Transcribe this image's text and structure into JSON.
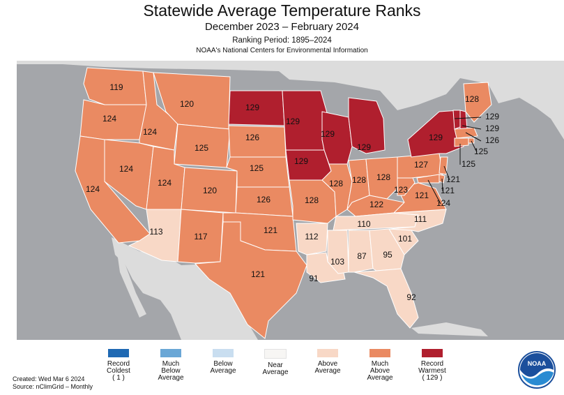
{
  "title": "Statewide Average Temperature Ranks",
  "period": "December 2023 – February 2024",
  "ranking_period": "Ranking Period: 1895–2024",
  "agency": "NOAA's National Centers for Environmental Information",
  "colors": {
    "record_coldest": "#1f69b3",
    "much_below": "#6aa7d6",
    "below": "#c9def0",
    "near": "#f7f6f4",
    "above": "#f8d8c6",
    "much_above": "#ea8a62",
    "record_warmest": "#b01f2e",
    "ocean": "#a4a6aa",
    "land": "#dcdcdc"
  },
  "states": [
    {
      "code": "WA",
      "rank": "119",
      "category": "much_above"
    },
    {
      "code": "OR",
      "rank": "124",
      "category": "much_above"
    },
    {
      "code": "CA",
      "rank": "124",
      "category": "much_above"
    },
    {
      "code": "ID",
      "rank": "124",
      "category": "much_above"
    },
    {
      "code": "NV",
      "rank": "124",
      "category": "much_above"
    },
    {
      "code": "MT",
      "rank": "120",
      "category": "much_above"
    },
    {
      "code": "WY",
      "rank": "125",
      "category": "much_above"
    },
    {
      "code": "UT",
      "rank": "124",
      "category": "much_above"
    },
    {
      "code": "CO",
      "rank": "120",
      "category": "much_above"
    },
    {
      "code": "AZ",
      "rank": "113",
      "category": "above"
    },
    {
      "code": "NM",
      "rank": "117",
      "category": "much_above"
    },
    {
      "code": "ND",
      "rank": "129",
      "category": "record_warmest"
    },
    {
      "code": "SD",
      "rank": "126",
      "category": "much_above"
    },
    {
      "code": "NE",
      "rank": "125",
      "category": "much_above"
    },
    {
      "code": "KS",
      "rank": "126",
      "category": "much_above"
    },
    {
      "code": "OK",
      "rank": "121",
      "category": "much_above"
    },
    {
      "code": "TX",
      "rank": "121",
      "category": "much_above"
    },
    {
      "code": "MN",
      "rank": "129",
      "category": "record_warmest"
    },
    {
      "code": "IA",
      "rank": "129",
      "category": "record_warmest"
    },
    {
      "code": "MO",
      "rank": "128",
      "category": "much_above"
    },
    {
      "code": "AR",
      "rank": "112",
      "category": "above"
    },
    {
      "code": "LA",
      "rank": "91",
      "category": "above"
    },
    {
      "code": "WI",
      "rank": "129",
      "category": "record_warmest"
    },
    {
      "code": "IL",
      "rank": "128",
      "category": "much_above"
    },
    {
      "code": "MI",
      "rank": "129",
      "category": "record_warmest"
    },
    {
      "code": "IN",
      "rank": "128",
      "category": "much_above"
    },
    {
      "code": "OH",
      "rank": "128",
      "category": "much_above"
    },
    {
      "code": "KY",
      "rank": "122",
      "category": "much_above"
    },
    {
      "code": "TN",
      "rank": "110",
      "category": "above"
    },
    {
      "code": "MS",
      "rank": "103",
      "category": "above"
    },
    {
      "code": "AL",
      "rank": "87",
      "category": "above"
    },
    {
      "code": "GA",
      "rank": "95",
      "category": "above"
    },
    {
      "code": "FL",
      "rank": "92",
      "category": "above"
    },
    {
      "code": "SC",
      "rank": "101",
      "category": "above"
    },
    {
      "code": "NC",
      "rank": "111",
      "category": "above"
    },
    {
      "code": "VA",
      "rank": "121",
      "category": "much_above"
    },
    {
      "code": "WV",
      "rank": "123",
      "category": "much_above"
    },
    {
      "code": "PA",
      "rank": "127",
      "category": "much_above"
    },
    {
      "code": "NY",
      "rank": "129",
      "category": "record_warmest"
    },
    {
      "code": "ME",
      "rank": "128",
      "category": "much_above"
    },
    {
      "code": "VT",
      "rank": "129",
      "category": "record_warmest"
    },
    {
      "code": "NH",
      "rank": "129",
      "category": "record_warmest"
    },
    {
      "code": "MA",
      "rank": "126",
      "category": "much_above"
    },
    {
      "code": "RI",
      "rank": "125",
      "category": "much_above"
    },
    {
      "code": "CT",
      "rank": "125",
      "category": "much_above"
    },
    {
      "code": "NJ",
      "rank": "121",
      "category": "much_above"
    },
    {
      "code": "DE",
      "rank": "121",
      "category": "much_above"
    },
    {
      "code": "MD",
      "rank": "124",
      "category": "much_above"
    }
  ],
  "legend": [
    {
      "key": "record_coldest",
      "label": "Record Coldest",
      "extra": "( 1 )"
    },
    {
      "key": "much_below",
      "label": "Much Below Average",
      "extra": ""
    },
    {
      "key": "below",
      "label": "Below Average",
      "extra": ""
    },
    {
      "key": "near",
      "label": "Near Average",
      "extra": ""
    },
    {
      "key": "above",
      "label": "Above Average",
      "extra": ""
    },
    {
      "key": "much_above",
      "label": "Much Above Average",
      "extra": ""
    },
    {
      "key": "record_warmest",
      "label": "Record Warmest",
      "extra": "( 129 )"
    }
  ],
  "footer": {
    "created": "Created: Wed Mar  6 2024",
    "source": "Source: nClimGrid – Monthly"
  },
  "logo_text": "NOAA"
}
